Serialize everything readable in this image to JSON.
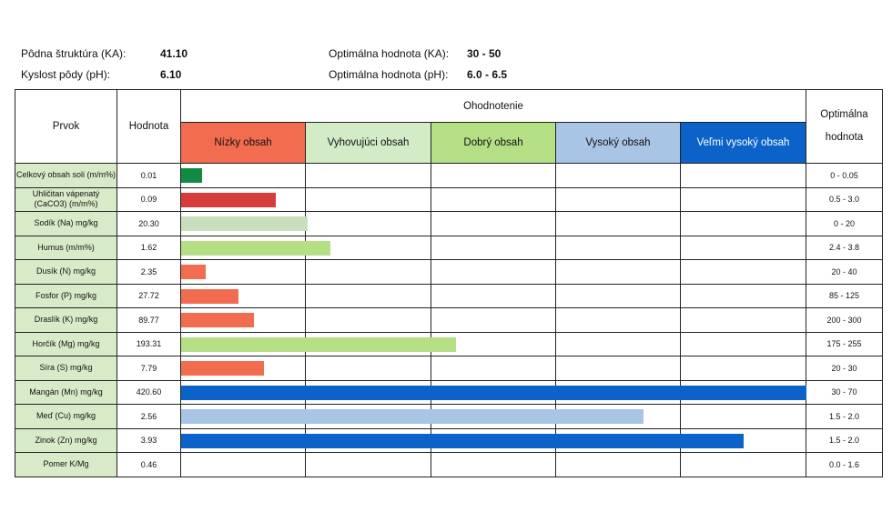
{
  "header": {
    "row1": {
      "label": "Pôdna štruktúra (KA):",
      "value": "41.10",
      "opt_label": "Optimálna hodnota (KA):",
      "opt_value": "30 - 50"
    },
    "row2": {
      "label": "Kyslost pôdy (pH):",
      "value": "6.10",
      "opt_label": "Optimálna hodnota (pH):",
      "opt_value": "6.0 - 6.5"
    }
  },
  "table": {
    "col_element": "Prvok",
    "col_value": "Hodnota",
    "col_evaluation": "Ohodnotenie",
    "col_optimal_1": "Optimálna",
    "col_optimal_2": "hodnota",
    "categories": [
      "Nízky obsah",
      "Vyhovujúci obsah",
      "Dobrý obsah",
      "Vysoký obsah",
      "Veľmi vysoký obsah"
    ]
  },
  "colors": {
    "nizky": "#f26c4f",
    "vyhovujuci": "#d3ebc7",
    "dobry": "#b5df85",
    "vysoky": "#a9c5e6",
    "velmi_vysoky": "#0b63c9",
    "green_dark": "#138a43",
    "red_dark": "#d63c3c",
    "element_bg": "#d8ebc8"
  },
  "chart_data": {
    "type": "bar",
    "orientation": "horizontal",
    "scale_note": "bar length spans evaluation categories; 5 categories = full width",
    "rows": [
      {
        "label": "Celkový obsah soli (m/m%)",
        "value": "0.01",
        "optimal": "0 - 0.05",
        "bar_level": 0.17,
        "color": "#138a43"
      },
      {
        "label": "Uhličitan vápenatý (CaCO3) (m/m%)",
        "value": "0.09",
        "optimal": "0.5 - 3.0",
        "bar_level": 0.76,
        "color": "#d63c3c"
      },
      {
        "label": "Sodík (Na) mg/kg",
        "value": "20.30",
        "optimal": "0 - 20",
        "bar_level": 1.01,
        "color": "#c8dfbd"
      },
      {
        "label": "Humus (m/m%)",
        "value": "1.62",
        "optimal": "2.4 - 3.8",
        "bar_level": 1.19,
        "color": "#b5df85"
      },
      {
        "label": "Dusík (N) mg/kg",
        "value": "2.35",
        "optimal": "20 - 40",
        "bar_level": 0.2,
        "color": "#f26c4f"
      },
      {
        "label": "Fosfor (P) mg/kg",
        "value": "27.72",
        "optimal": "85 - 125",
        "bar_level": 0.46,
        "color": "#f26c4f"
      },
      {
        "label": "Draslík (K) mg/kg",
        "value": "89.77",
        "optimal": "200 - 300",
        "bar_level": 0.58,
        "color": "#f26c4f"
      },
      {
        "label": "Horčík (Mg) mg/kg",
        "value": "193.31",
        "optimal": "175 - 255",
        "bar_level": 2.2,
        "color": "#b5df85"
      },
      {
        "label": "Síra (S) mg/kg",
        "value": "7.79",
        "optimal": "20 - 30",
        "bar_level": 0.66,
        "color": "#f26c4f"
      },
      {
        "label": "Mangán (Mn) mg/kg",
        "value": "420.60",
        "optimal": "30 - 70",
        "bar_level": 5.0,
        "color": "#0b63c9"
      },
      {
        "label": "Meď (Cu) mg/kg",
        "value": "2.56",
        "optimal": "1.5 - 2.0",
        "bar_level": 3.7,
        "color": "#a9c5e6"
      },
      {
        "label": "Zinok (Zn) mg/kg",
        "value": "3.93",
        "optimal": "1.5 - 2.0",
        "bar_level": 4.5,
        "color": "#0b63c9"
      },
      {
        "label": "Pomer K/Mg",
        "value": "0.46",
        "optimal": "0.0 - 1.6",
        "bar_level": 0,
        "color": ""
      }
    ]
  }
}
